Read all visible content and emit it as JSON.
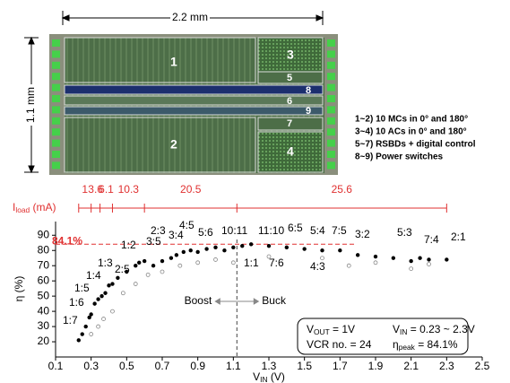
{
  "die": {
    "width_label": "2.2 mm",
    "height_label": "1.1 mm",
    "blocks": [
      "1",
      "2",
      "3",
      "4",
      "5",
      "6",
      "7",
      "8",
      "9"
    ],
    "notes": [
      "1~2) 10 MCs in 0° and 180°",
      "3~4) 10 ACs in 0° and 180°",
      "5~7) RSBDs + digital control",
      "8~9) Power switches"
    ]
  },
  "chart_data": {
    "type": "scatter",
    "y_label": "η (%)",
    "x_label": {
      "main": "V",
      "sub": "IN",
      "rest": " (V)"
    },
    "xlim": [
      0.1,
      2.5
    ],
    "xticks": [
      0.1,
      0.3,
      0.5,
      0.7,
      0.9,
      1.1,
      1.3,
      1.5,
      1.7,
      1.9,
      2.1,
      2.3,
      2.5
    ],
    "ylim": [
      10,
      99
    ],
    "yticks": [
      20,
      30,
      40,
      50,
      60,
      70,
      80,
      90
    ],
    "series": [
      {
        "color": "#000000",
        "marker": "filled",
        "x": [
          0.23,
          0.25,
          0.27,
          0.29,
          0.3,
          0.32,
          0.34,
          0.36,
          0.38,
          0.4,
          0.42,
          0.45,
          0.5,
          0.55,
          0.57,
          0.6,
          0.65,
          0.7,
          0.75,
          0.78,
          0.82,
          0.86,
          0.9,
          0.95,
          1.0,
          1.05,
          1.1,
          1.15,
          1.2,
          1.3,
          1.4,
          1.5,
          1.6,
          1.7,
          1.8,
          1.9,
          2.0,
          2.1,
          2.15,
          2.2,
          2.3
        ],
        "values": [
          21,
          25,
          30,
          36,
          38,
          45,
          48,
          50,
          52,
          57,
          58,
          62,
          66,
          70,
          72,
          73,
          70,
          73,
          75,
          77,
          79,
          80,
          79,
          81,
          82,
          80,
          82,
          83,
          84.1,
          83,
          82,
          81,
          80,
          80,
          77,
          76,
          75,
          73,
          75,
          74,
          74
        ]
      },
      {
        "color": "#888888",
        "marker": "hollow",
        "x": [
          0.3,
          0.34,
          0.37,
          0.42,
          0.48,
          0.55,
          0.62,
          0.7,
          0.8,
          0.9,
          1.0,
          1.1,
          1.3,
          1.6,
          1.75,
          1.9,
          2.1,
          2.2
        ],
        "values": [
          25,
          30,
          35,
          40,
          52,
          58,
          64,
          66,
          70,
          72,
          74,
          72,
          76,
          75,
          70,
          72,
          68,
          71
        ]
      }
    ],
    "reference_line": {
      "value": 84.1,
      "value_label": "84.1%",
      "color": "#e03030"
    },
    "boundary": {
      "x": 1.12,
      "left": "Boost",
      "right": "Buck"
    },
    "load_current": {
      "main": "I",
      "sub": "load",
      "rest": " (mA)",
      "color": "#e03030",
      "edges": [
        0.23,
        0.3,
        0.35,
        0.42,
        0.6,
        1.12,
        2.3
      ],
      "labels": [
        "1",
        "3.6",
        "6.1",
        "10.3",
        "20.5",
        "25.6"
      ]
    },
    "annotations": [
      "1:7",
      "1:6",
      "1:5",
      "1:4",
      "1:3",
      "2:5",
      "1:2",
      "3:5",
      "2:3",
      "3:4",
      "4:5",
      "5:6",
      "10:11",
      "1:1",
      "11:10",
      "7:6",
      "6:5",
      "5:4",
      "4:3",
      "7:5",
      "3:2",
      "5:3",
      "7:4",
      "2:1"
    ],
    "info_box": [
      {
        "main": "V",
        "sub": "OUT",
        "rest": " = 1V"
      },
      {
        "main": "V",
        "sub": "IN",
        "rest": " = 0.23 ~ 2.3V"
      },
      {
        "main": "VCR no. = 24",
        "sub": "",
        "rest": ""
      },
      {
        "main": "η",
        "sub": "peak",
        "rest": " = 84.1%"
      }
    ]
  }
}
